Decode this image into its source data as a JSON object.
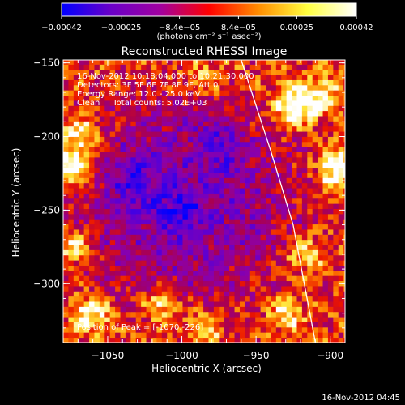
{
  "chart_data": {
    "type": "heatmap",
    "title": "Reconstructed RHESSI Image",
    "xlabel": "Heliocentric X (arcsec)",
    "ylabel": "Heliocentric Y (arcsec)",
    "xlim": [
      -1080,
      -890
    ],
    "ylim": [
      -340,
      -148
    ],
    "x_ticks": [
      -1050,
      -1000,
      -950,
      -900
    ],
    "x_tick_labels": [
      "−1050",
      "−1000",
      "−950",
      "−900"
    ],
    "y_ticks": [
      -150,
      -200,
      -250,
      -300
    ],
    "y_tick_labels": [
      "−150",
      "−200",
      "−250",
      "−300"
    ],
    "colorbar": {
      "range": [
        -0.00042,
        0.00042
      ],
      "ticks": [
        -0.00042,
        -0.00025,
        -8.4e-05,
        8.4e-05,
        0.00025,
        0.00042
      ],
      "tick_labels": [
        "−0.00042",
        "−0.00025",
        "−8.4e−05",
        "8.4e−05",
        "0.00025",
        "0.00042"
      ],
      "unit_label": "(photons cm⁻² s⁻¹ asec⁻²)",
      "colors": [
        "#0000ff",
        "#6a00c8",
        "#a000a0",
        "#ff0000",
        "#ff8c00",
        "#ffff40",
        "#ffffff"
      ]
    },
    "annotations": [
      "16-Nov-2012 10:18:04.000 to 10:21:30.000",
      "Detectors: 3F 5F 6F 7F 8F 9F, Att 0",
      "Energy Range: 12.0 - 25.0 keV",
      "Clean     Total counts: 5.02E+03"
    ],
    "peak_label": "Position of Peak = [-1070,-226]",
    "peak": [
      -1070,
      -226
    ],
    "limb_curve": [
      [
        -960,
        -148
      ],
      [
        -940,
        -210
      ],
      [
        -925,
        -260
      ],
      [
        -910,
        -340
      ]
    ],
    "hot_spots": [
      {
        "x": -1075,
        "y": -222,
        "v": 1.0
      },
      {
        "x": -1068,
        "y": -200,
        "v": 0.7
      },
      {
        "x": -1072,
        "y": -275,
        "v": 0.55
      },
      {
        "x": -1060,
        "y": -320,
        "v": 0.65
      },
      {
        "x": -1015,
        "y": -315,
        "v": 0.6
      },
      {
        "x": -985,
        "y": -330,
        "v": 0.55
      },
      {
        "x": -925,
        "y": -178,
        "v": 0.85
      },
      {
        "x": -905,
        "y": -172,
        "v": 0.55
      },
      {
        "x": -895,
        "y": -222,
        "v": 0.8
      },
      {
        "x": -918,
        "y": -280,
        "v": 0.5
      },
      {
        "x": -930,
        "y": -320,
        "v": 0.45
      },
      {
        "x": -985,
        "y": -160,
        "v": 0.35
      }
    ],
    "cold_spots": [
      {
        "x": -1000,
        "y": -250,
        "v": 0.55
      },
      {
        "x": -975,
        "y": -205,
        "v": 0.4
      },
      {
        "x": -1030,
        "y": -230,
        "v": 0.35
      }
    ]
  },
  "footer": {
    "timestamp": "16-Nov-2012 04:45"
  }
}
